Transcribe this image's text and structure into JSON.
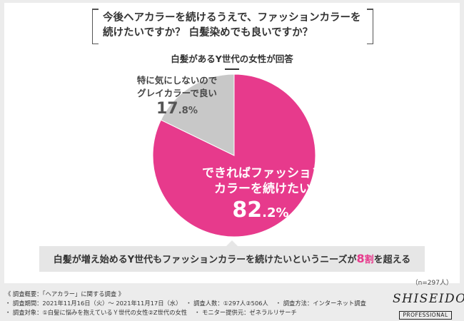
{
  "question": {
    "line1": "今後ヘアカラーを続けるうえで、ファッションカラーを",
    "line2": "続けたいですか？ 白髪染めでも良いですか？"
  },
  "subtitle": "白髪があるY世代の女性が回答",
  "chart_data": {
    "type": "pie",
    "slices": [
      {
        "label_line1": "できればファッション",
        "label_line2": "カラーを続けたい",
        "value": 82.2,
        "int": "82",
        "dec": ".2%",
        "color": "#e73a8c"
      },
      {
        "label_line1": "特に気にしないので",
        "label_line2": "グレイカラーで良い",
        "value": 17.8,
        "int": "17",
        "dec": ".8%",
        "color": "#c8c8c8"
      }
    ]
  },
  "conclusion": {
    "before": "白髪が増え始めるY世代もファッションカラーを続けたいというニーズが",
    "highlight": "8",
    "after_small": "割",
    "after": "を超える"
  },
  "sample": "（n=297人）",
  "footer": {
    "heading": "《 調査概要：「ヘアカラー」に関する調査 》",
    "period": "・ 調査期間：2021年11月16日（火）～ 2021年11月17日（水）",
    "count": "・ 調査人数：①297人②506人",
    "method": "・ 調査方法：インターネット調査",
    "target": "・ 調査対象：①白髪に悩みを抱えているＹ世代の女性②Z世代の女性",
    "provider": "・ モニター提供元：ゼネラルリサーチ"
  },
  "logo": {
    "main": "SHISEIDO",
    "sub": "PROFESSIONAL"
  }
}
